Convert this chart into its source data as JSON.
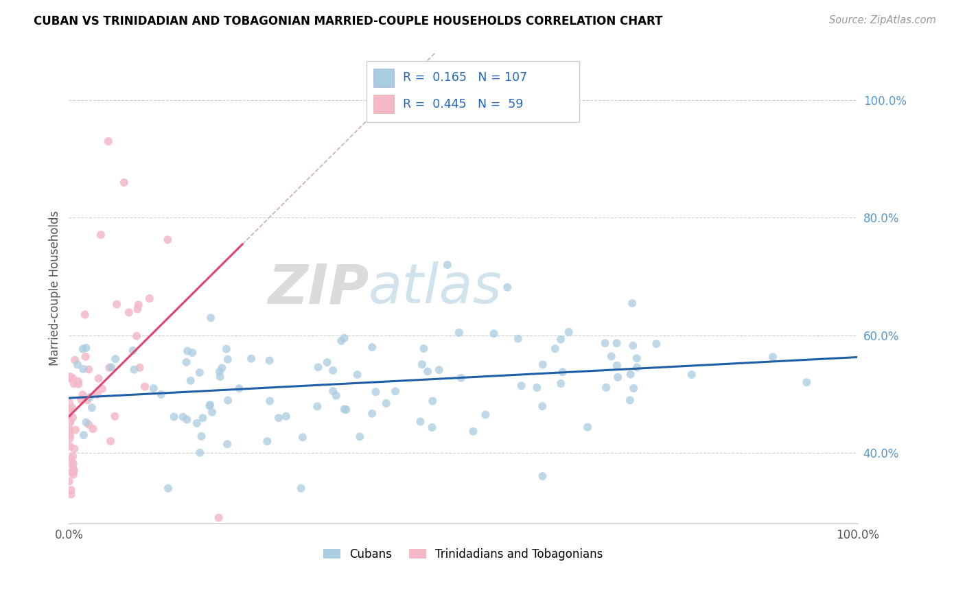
{
  "title": "CUBAN VS TRINIDADIAN AND TOBAGONIAN MARRIED-COUPLE HOUSEHOLDS CORRELATION CHART",
  "source": "Source: ZipAtlas.com",
  "ylabel": "Married-couple Households",
  "legend_label1": "Cubans",
  "legend_label2": "Trinidadians and Tobagonians",
  "R1": 0.165,
  "N1": 107,
  "R2": 0.445,
  "N2": 59,
  "color_blue": "#a8cce0",
  "color_pink": "#f4b8c8",
  "color_blue_line": "#1f5fa6",
  "color_pink_line": "#e0436e",
  "watermark_zip": "ZIP",
  "watermark_atlas": "atlas",
  "xlim": [
    0.0,
    1.0
  ],
  "ylim": [
    0.28,
    1.08
  ],
  "yticks": [
    0.4,
    0.6,
    0.8,
    1.0
  ],
  "ytick_labels": [
    "40.0%",
    "60.0%",
    "80.0%",
    "100.0%"
  ]
}
